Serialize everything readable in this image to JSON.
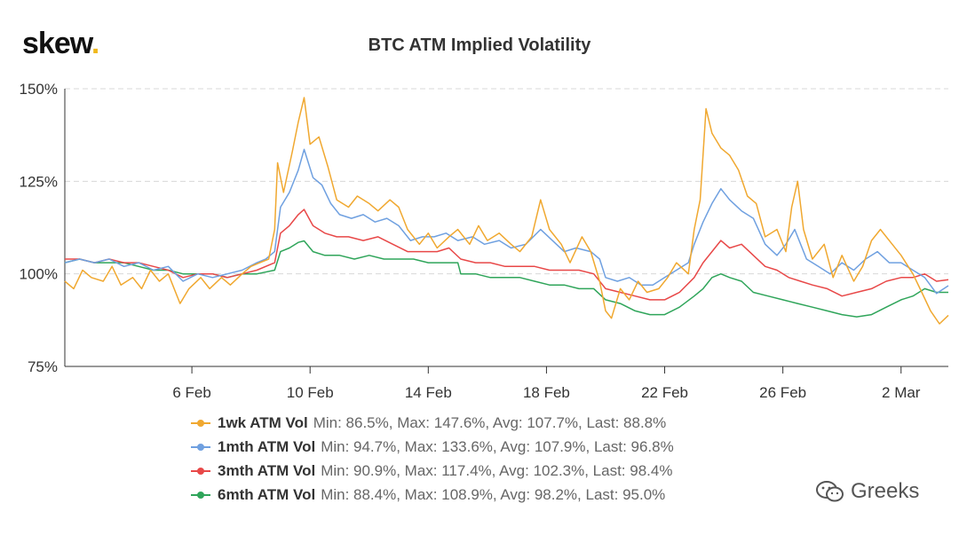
{
  "brand": {
    "name": "skew",
    "dot": "."
  },
  "watermark": {
    "text": "Greeks",
    "icon": "wechat-icon"
  },
  "chart_data": {
    "type": "line",
    "title": "BTC ATM Implied Volatility",
    "ylim": [
      75,
      150
    ],
    "yticks": [
      75,
      100,
      125,
      150
    ],
    "ytick_labels": [
      "75%",
      "100%",
      "125%",
      "150%"
    ],
    "xlim": [
      1.7,
      31.6
    ],
    "xticks": [
      6,
      10,
      14,
      18,
      22,
      26,
      30
    ],
    "xtick_labels": [
      "6 Feb",
      "10 Feb",
      "14 Feb",
      "18 Feb",
      "22 Feb",
      "26 Feb",
      "2 Mar"
    ],
    "x_note": "days in February (x=30 corresponds to 2 Mar)",
    "grid": "horizontal dashed",
    "legend_position": "bottom",
    "series": [
      {
        "name": "1wk ATM Vol",
        "color": "#f0a830",
        "stats": "Min: 86.5%, Max: 147.6%, Avg: 107.7%, Last: 88.8%",
        "points": [
          [
            1.7,
            98
          ],
          [
            2.0,
            96
          ],
          [
            2.3,
            101
          ],
          [
            2.6,
            99
          ],
          [
            3.0,
            98
          ],
          [
            3.3,
            102
          ],
          [
            3.6,
            97
          ],
          [
            4.0,
            99
          ],
          [
            4.3,
            96
          ],
          [
            4.6,
            101
          ],
          [
            4.9,
            98
          ],
          [
            5.2,
            100
          ],
          [
            5.6,
            92
          ],
          [
            5.9,
            96
          ],
          [
            6.3,
            99
          ],
          [
            6.6,
            96
          ],
          [
            7.0,
            99
          ],
          [
            7.3,
            97
          ],
          [
            7.7,
            100
          ],
          [
            8.0,
            102
          ],
          [
            8.3,
            103
          ],
          [
            8.6,
            104
          ],
          [
            8.8,
            112
          ],
          [
            8.9,
            130
          ],
          [
            9.1,
            122
          ],
          [
            9.4,
            133
          ],
          [
            9.6,
            141
          ],
          [
            9.8,
            147.6
          ],
          [
            10.0,
            135
          ],
          [
            10.3,
            137
          ],
          [
            10.6,
            129
          ],
          [
            10.9,
            120
          ],
          [
            11.3,
            118
          ],
          [
            11.6,
            121
          ],
          [
            12.0,
            119
          ],
          [
            12.3,
            117
          ],
          [
            12.7,
            120
          ],
          [
            13.0,
            118
          ],
          [
            13.3,
            112
          ],
          [
            13.7,
            108
          ],
          [
            14.0,
            111
          ],
          [
            14.3,
            107
          ],
          [
            14.7,
            110
          ],
          [
            15.0,
            112
          ],
          [
            15.4,
            108
          ],
          [
            15.7,
            113
          ],
          [
            16.0,
            109
          ],
          [
            16.4,
            111
          ],
          [
            16.8,
            108
          ],
          [
            17.1,
            106
          ],
          [
            17.5,
            110
          ],
          [
            17.8,
            120
          ],
          [
            18.1,
            112
          ],
          [
            18.5,
            108
          ],
          [
            18.8,
            103
          ],
          [
            19.2,
            110
          ],
          [
            19.5,
            106
          ],
          [
            19.8,
            98
          ],
          [
            20.0,
            90
          ],
          [
            20.2,
            88
          ],
          [
            20.5,
            96
          ],
          [
            20.8,
            93
          ],
          [
            21.1,
            98
          ],
          [
            21.4,
            95
          ],
          [
            21.8,
            96
          ],
          [
            22.1,
            99
          ],
          [
            22.4,
            103
          ],
          [
            22.8,
            100
          ],
          [
            23.0,
            112
          ],
          [
            23.2,
            120
          ],
          [
            23.4,
            144.6
          ],
          [
            23.6,
            138
          ],
          [
            23.9,
            134
          ],
          [
            24.2,
            132
          ],
          [
            24.5,
            128
          ],
          [
            24.8,
            121
          ],
          [
            25.1,
            119
          ],
          [
            25.4,
            110
          ],
          [
            25.8,
            112
          ],
          [
            26.1,
            106
          ],
          [
            26.3,
            118
          ],
          [
            26.5,
            125
          ],
          [
            26.7,
            112
          ],
          [
            27.0,
            104
          ],
          [
            27.4,
            108
          ],
          [
            27.7,
            99
          ],
          [
            28.0,
            105
          ],
          [
            28.4,
            98
          ],
          [
            28.7,
            102
          ],
          [
            29.0,
            109
          ],
          [
            29.3,
            112
          ],
          [
            29.7,
            108
          ],
          [
            30.0,
            105
          ],
          [
            30.4,
            100
          ],
          [
            30.7,
            95
          ],
          [
            31.0,
            90
          ],
          [
            31.3,
            86.5
          ],
          [
            31.6,
            88.8
          ]
        ]
      },
      {
        "name": "1mth ATM Vol",
        "color": "#6fa0e0",
        "stats": "Min: 94.7%, Max: 133.6%, Avg: 107.9%, Last: 96.8%",
        "points": [
          [
            1.7,
            103
          ],
          [
            2.2,
            104
          ],
          [
            2.7,
            103
          ],
          [
            3.2,
            104
          ],
          [
            3.7,
            102
          ],
          [
            4.2,
            103
          ],
          [
            4.7,
            101
          ],
          [
            5.2,
            102
          ],
          [
            5.7,
            98
          ],
          [
            6.2,
            100
          ],
          [
            6.7,
            99
          ],
          [
            7.2,
            100
          ],
          [
            7.7,
            101
          ],
          [
            8.2,
            103
          ],
          [
            8.5,
            104
          ],
          [
            8.8,
            106
          ],
          [
            9.0,
            118
          ],
          [
            9.3,
            122
          ],
          [
            9.6,
            128
          ],
          [
            9.8,
            133.6
          ],
          [
            10.1,
            126
          ],
          [
            10.4,
            124
          ],
          [
            10.7,
            119
          ],
          [
            11.0,
            116
          ],
          [
            11.4,
            115
          ],
          [
            11.8,
            116
          ],
          [
            12.2,
            114
          ],
          [
            12.6,
            115
          ],
          [
            13.0,
            113
          ],
          [
            13.4,
            109
          ],
          [
            13.8,
            110
          ],
          [
            14.2,
            110
          ],
          [
            14.6,
            111
          ],
          [
            15.0,
            109
          ],
          [
            15.5,
            110
          ],
          [
            15.9,
            108
          ],
          [
            16.4,
            109
          ],
          [
            16.8,
            107
          ],
          [
            17.3,
            108
          ],
          [
            17.8,
            112
          ],
          [
            18.2,
            109
          ],
          [
            18.6,
            106
          ],
          [
            19.0,
            107
          ],
          [
            19.5,
            106
          ],
          [
            19.8,
            104
          ],
          [
            20.0,
            99
          ],
          [
            20.4,
            98
          ],
          [
            20.8,
            99
          ],
          [
            21.2,
            97
          ],
          [
            21.6,
            97
          ],
          [
            22.0,
            99
          ],
          [
            22.4,
            101
          ],
          [
            22.8,
            103
          ],
          [
            23.0,
            108
          ],
          [
            23.3,
            114
          ],
          [
            23.6,
            119
          ],
          [
            23.9,
            123
          ],
          [
            24.2,
            120
          ],
          [
            24.6,
            117
          ],
          [
            25.0,
            115
          ],
          [
            25.4,
            108
          ],
          [
            25.8,
            105
          ],
          [
            26.1,
            108
          ],
          [
            26.4,
            112
          ],
          [
            26.8,
            104
          ],
          [
            27.2,
            102
          ],
          [
            27.6,
            100
          ],
          [
            28.0,
            103
          ],
          [
            28.4,
            101
          ],
          [
            28.8,
            104
          ],
          [
            29.2,
            106
          ],
          [
            29.6,
            103
          ],
          [
            30.0,
            103
          ],
          [
            30.4,
            101
          ],
          [
            30.8,
            99
          ],
          [
            31.2,
            94.7
          ],
          [
            31.6,
            96.8
          ]
        ]
      },
      {
        "name": "3mth ATM Vol",
        "color": "#e84848",
        "stats": "Min: 90.9%, Max: 117.4%, Avg: 102.3%, Last: 98.4%",
        "points": [
          [
            1.7,
            104
          ],
          [
            2.2,
            104
          ],
          [
            2.7,
            103
          ],
          [
            3.2,
            104
          ],
          [
            3.7,
            103
          ],
          [
            4.2,
            103
          ],
          [
            4.7,
            102
          ],
          [
            5.2,
            101
          ],
          [
            5.7,
            99
          ],
          [
            6.2,
            100
          ],
          [
            6.7,
            100
          ],
          [
            7.2,
            99
          ],
          [
            7.7,
            100
          ],
          [
            8.2,
            101
          ],
          [
            8.8,
            103
          ],
          [
            9.0,
            111
          ],
          [
            9.3,
            113
          ],
          [
            9.6,
            116
          ],
          [
            9.8,
            117.4
          ],
          [
            10.1,
            113
          ],
          [
            10.5,
            111
          ],
          [
            10.9,
            110
          ],
          [
            11.3,
            110
          ],
          [
            11.8,
            109
          ],
          [
            12.3,
            110
          ],
          [
            12.8,
            108
          ],
          [
            13.3,
            106
          ],
          [
            13.8,
            106
          ],
          [
            14.3,
            106
          ],
          [
            14.7,
            107
          ],
          [
            15.1,
            104
          ],
          [
            15.6,
            103
          ],
          [
            16.1,
            103
          ],
          [
            16.6,
            102
          ],
          [
            17.1,
            102
          ],
          [
            17.6,
            102
          ],
          [
            18.1,
            101
          ],
          [
            18.6,
            101
          ],
          [
            19.1,
            101
          ],
          [
            19.6,
            100
          ],
          [
            20.0,
            96
          ],
          [
            20.5,
            95
          ],
          [
            21.0,
            94
          ],
          [
            21.5,
            93
          ],
          [
            22.0,
            93
          ],
          [
            22.5,
            95
          ],
          [
            23.0,
            99
          ],
          [
            23.3,
            103
          ],
          [
            23.6,
            106
          ],
          [
            23.9,
            109
          ],
          [
            24.2,
            107
          ],
          [
            24.6,
            108
          ],
          [
            25.0,
            105
          ],
          [
            25.4,
            102
          ],
          [
            25.8,
            101
          ],
          [
            26.2,
            99
          ],
          [
            26.6,
            98
          ],
          [
            27.0,
            97
          ],
          [
            27.5,
            96
          ],
          [
            28.0,
            94
          ],
          [
            28.5,
            95
          ],
          [
            29.0,
            96
          ],
          [
            29.5,
            98
          ],
          [
            30.0,
            99
          ],
          [
            30.4,
            99
          ],
          [
            30.8,
            100
          ],
          [
            31.2,
            98
          ],
          [
            31.6,
            98.4
          ]
        ]
      },
      {
        "name": "6mth ATM Vol",
        "color": "#2fa55a",
        "stats": "Min: 88.4%, Max: 108.9%, Avg: 98.2%, Last: 95.0%",
        "points": [
          [
            1.7,
            103
          ],
          [
            2.2,
            104
          ],
          [
            2.7,
            103
          ],
          [
            3.2,
            103
          ],
          [
            3.7,
            103
          ],
          [
            4.2,
            102
          ],
          [
            4.7,
            101
          ],
          [
            5.2,
            101
          ],
          [
            5.7,
            100
          ],
          [
            6.2,
            100
          ],
          [
            6.7,
            100
          ],
          [
            7.2,
            99
          ],
          [
            7.7,
            100
          ],
          [
            8.2,
            100
          ],
          [
            8.8,
            101
          ],
          [
            9.0,
            106
          ],
          [
            9.3,
            107
          ],
          [
            9.6,
            108.5
          ],
          [
            9.8,
            108.9
          ],
          [
            10.1,
            106
          ],
          [
            10.5,
            105
          ],
          [
            11.0,
            105
          ],
          [
            11.5,
            104
          ],
          [
            12.0,
            105
          ],
          [
            12.5,
            104
          ],
          [
            13.0,
            104
          ],
          [
            13.5,
            104
          ],
          [
            14.0,
            103
          ],
          [
            14.5,
            103
          ],
          [
            15.0,
            103
          ],
          [
            15.1,
            100
          ],
          [
            15.6,
            100
          ],
          [
            16.1,
            99
          ],
          [
            16.6,
            99
          ],
          [
            17.1,
            99
          ],
          [
            17.6,
            98
          ],
          [
            18.1,
            97
          ],
          [
            18.6,
            97
          ],
          [
            19.1,
            96
          ],
          [
            19.6,
            96
          ],
          [
            20.0,
            93
          ],
          [
            20.5,
            92
          ],
          [
            21.0,
            90
          ],
          [
            21.5,
            89
          ],
          [
            22.0,
            89
          ],
          [
            22.5,
            91
          ],
          [
            23.0,
            94
          ],
          [
            23.3,
            96
          ],
          [
            23.6,
            99
          ],
          [
            23.9,
            100
          ],
          [
            24.2,
            99
          ],
          [
            24.6,
            98
          ],
          [
            25.0,
            95
          ],
          [
            25.5,
            94
          ],
          [
            26.0,
            93
          ],
          [
            26.5,
            92
          ],
          [
            27.0,
            91
          ],
          [
            27.5,
            90
          ],
          [
            28.0,
            89
          ],
          [
            28.5,
            88.4
          ],
          [
            29.0,
            89
          ],
          [
            29.5,
            91
          ],
          [
            30.0,
            93
          ],
          [
            30.4,
            94
          ],
          [
            30.8,
            96
          ],
          [
            31.2,
            95
          ],
          [
            31.6,
            95.0
          ]
        ]
      }
    ]
  }
}
